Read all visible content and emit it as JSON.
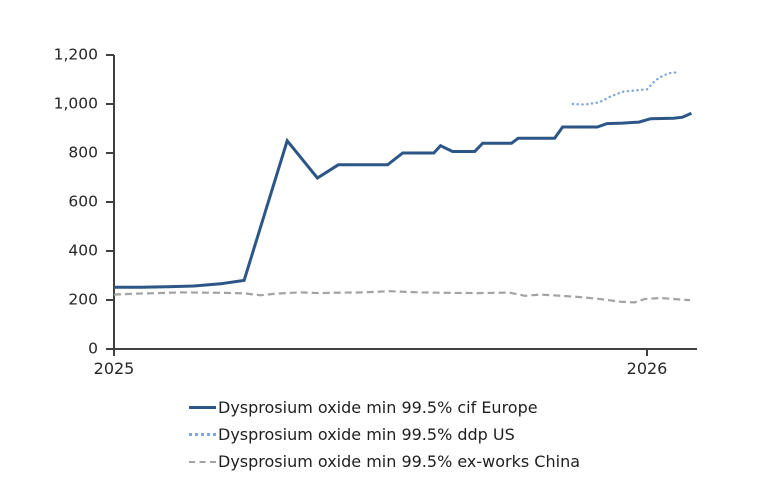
{
  "chart_data": {
    "type": "line",
    "title": "",
    "xlabel": "",
    "ylabel": "",
    "grid": false,
    "legend_position": "bottom-left",
    "x_axis": {
      "unit": "months-since-Jan-2025",
      "range": [
        0,
        13.15
      ],
      "ticks": [
        {
          "t": 0,
          "label": "2025"
        },
        {
          "t": 12,
          "label": "2026"
        }
      ]
    },
    "y_axis": {
      "range": [
        0,
        1200
      ],
      "ticks": [
        0,
        200,
        400,
        600,
        800,
        1000,
        1200
      ],
      "tick_labels": [
        "0",
        "200",
        "400",
        "600",
        "800",
        "1,000",
        "1,200"
      ]
    },
    "series": [
      {
        "name": "Dysprosium oxide min 99.5% cif Europe",
        "style": "solid",
        "color": "#2b5685",
        "width": 3,
        "points": [
          [
            0,
            252
          ],
          [
            0.6,
            252
          ],
          [
            1.2,
            254
          ],
          [
            1.8,
            257
          ],
          [
            2.4,
            266
          ],
          [
            2.93,
            280
          ],
          [
            3.9,
            850
          ],
          [
            4.58,
            698
          ],
          [
            5.05,
            752
          ],
          [
            6.16,
            752
          ],
          [
            6.5,
            800
          ],
          [
            7.2,
            800
          ],
          [
            7.35,
            830
          ],
          [
            7.62,
            806
          ],
          [
            8.12,
            806
          ],
          [
            8.3,
            840
          ],
          [
            8.95,
            840
          ],
          [
            9.1,
            860
          ],
          [
            9.92,
            860
          ],
          [
            10.1,
            906
          ],
          [
            10.88,
            906
          ],
          [
            11.1,
            920
          ],
          [
            11.45,
            922
          ],
          [
            11.82,
            926
          ],
          [
            12.08,
            940
          ],
          [
            12.6,
            942
          ],
          [
            12.8,
            946
          ],
          [
            13.0,
            962
          ]
        ]
      },
      {
        "name": "Dysprosium oxide min 99.5% ddp US",
        "style": "dotted",
        "color": "#7fa8d8",
        "width": 2.4,
        "points": [
          [
            10.33,
            1000
          ],
          [
            10.6,
            998
          ],
          [
            10.92,
            1006
          ],
          [
            11.17,
            1030
          ],
          [
            11.45,
            1050
          ],
          [
            11.76,
            1056
          ],
          [
            12.0,
            1060
          ],
          [
            12.2,
            1098
          ],
          [
            12.36,
            1116
          ],
          [
            12.52,
            1126
          ],
          [
            12.72,
            1130
          ]
        ]
      },
      {
        "name": "Dysprosium oxide min 99.5% ex-works China",
        "style": "dashed",
        "color": "#a3a3a3",
        "width": 2.2,
        "points": [
          [
            0,
            222
          ],
          [
            0.5,
            226
          ],
          [
            1.0,
            228
          ],
          [
            1.5,
            231
          ],
          [
            2.0,
            230
          ],
          [
            2.5,
            229
          ],
          [
            2.95,
            227
          ],
          [
            3.3,
            219
          ],
          [
            3.65,
            226
          ],
          [
            4.2,
            231
          ],
          [
            4.65,
            228
          ],
          [
            5.1,
            230
          ],
          [
            5.6,
            231
          ],
          [
            6.2,
            236
          ],
          [
            6.9,
            231
          ],
          [
            7.6,
            229
          ],
          [
            8.2,
            228
          ],
          [
            8.9,
            230
          ],
          [
            9.25,
            217
          ],
          [
            9.6,
            222
          ],
          [
            10.0,
            218
          ],
          [
            10.5,
            212
          ],
          [
            10.9,
            205
          ],
          [
            11.4,
            193
          ],
          [
            11.72,
            190
          ],
          [
            11.95,
            204
          ],
          [
            12.3,
            208
          ],
          [
            12.6,
            204
          ],
          [
            12.97,
            199
          ]
        ]
      }
    ],
    "axis_color": "#404040",
    "text_color": "#262626"
  }
}
